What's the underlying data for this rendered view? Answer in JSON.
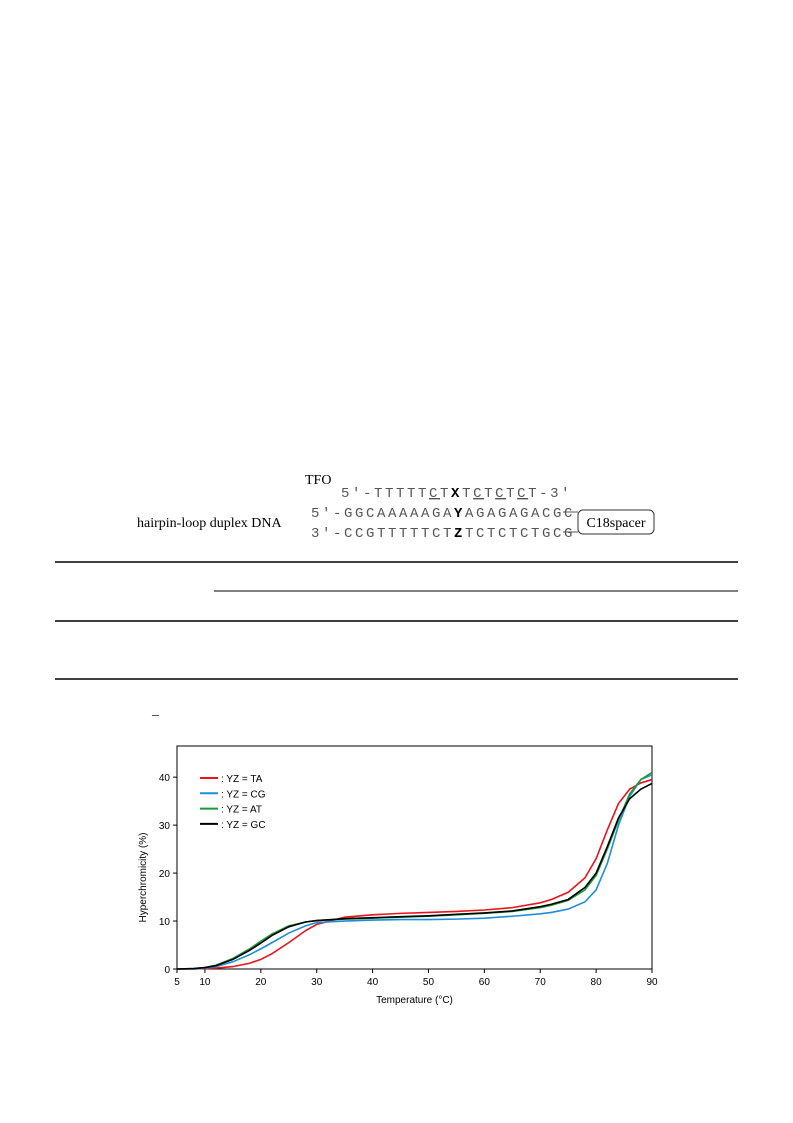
{
  "diagram": {
    "tfo_label": "TFO",
    "tfo": [
      "5'-TTTTT",
      "C",
      "T",
      "X",
      "T",
      "C",
      "T",
      "C",
      "T",
      "C",
      "T-3'"
    ],
    "duplex_label": "hairpin-loop duplex DNA",
    "strand1": [
      "5'-GGCAAAAAGA",
      "Y",
      "AGAGAGACGC"
    ],
    "strand2": [
      "3'-CCGTTTTTCT",
      "Z",
      "TCTCTCTGCG"
    ],
    "spacer": "C18spacer"
  },
  "stray_mark": "_",
  "chart_data": {
    "type": "line",
    "xlabel": "Temperature (°C)",
    "ylabel": "Hyperchromicity (%)",
    "x": [
      5,
      8,
      10,
      12,
      15,
      18,
      20,
      22,
      25,
      28,
      30,
      35,
      40,
      45,
      50,
      55,
      60,
      65,
      70,
      72,
      75,
      78,
      80,
      82,
      84,
      86,
      88,
      90
    ],
    "series": [
      {
        "name": ": YZ = TA",
        "color": "#e8141c",
        "values": [
          0,
          0,
          0.1,
          0.2,
          0.5,
          1.2,
          2,
          3.2,
          5.5,
          8,
          9.3,
          10.8,
          11.3,
          11.6,
          11.8,
          12,
          12.3,
          12.8,
          13.8,
          14.5,
          16,
          19,
          23,
          29,
          34.5,
          37.5,
          38.8,
          39.5
        ]
      },
      {
        "name": ": YZ = CG",
        "color": "#1e8ed6",
        "values": [
          0,
          0,
          0.2,
          0.5,
          1.5,
          3,
          4.2,
          5.5,
          7.5,
          9,
          9.7,
          10,
          10.2,
          10.3,
          10.3,
          10.4,
          10.6,
          11,
          11.5,
          11.8,
          12.5,
          14,
          16.5,
          22,
          30,
          36,
          39.5,
          40.5
        ]
      },
      {
        "name": ": YZ = AT",
        "color": "#1a9a3a",
        "values": [
          0,
          0.1,
          0.3,
          0.8,
          2.2,
          4.2,
          5.8,
          7.3,
          9,
          9.8,
          10.1,
          10.4,
          10.6,
          10.8,
          11,
          11.3,
          11.6,
          12,
          12.8,
          13.3,
          14.3,
          16.5,
          19.5,
          25,
          31,
          36.5,
          39.5,
          41
        ]
      },
      {
        "name": ": YZ = GC",
        "color": "#000000",
        "values": [
          0,
          0.1,
          0.3,
          0.7,
          2,
          3.9,
          5.4,
          7,
          8.8,
          9.8,
          10.1,
          10.5,
          10.7,
          10.9,
          11.1,
          11.4,
          11.7,
          12.1,
          13,
          13.5,
          14.5,
          17,
          20,
          25.5,
          31.5,
          35.5,
          37.5,
          38.7
        ]
      }
    ],
    "xlim": [
      5,
      90
    ],
    "ylim": [
      0,
      46.5
    ],
    "xticks": [
      5,
      10,
      20,
      30,
      40,
      50,
      60,
      70,
      80,
      90
    ],
    "yticks": [
      0,
      10,
      20,
      30,
      40
    ]
  }
}
